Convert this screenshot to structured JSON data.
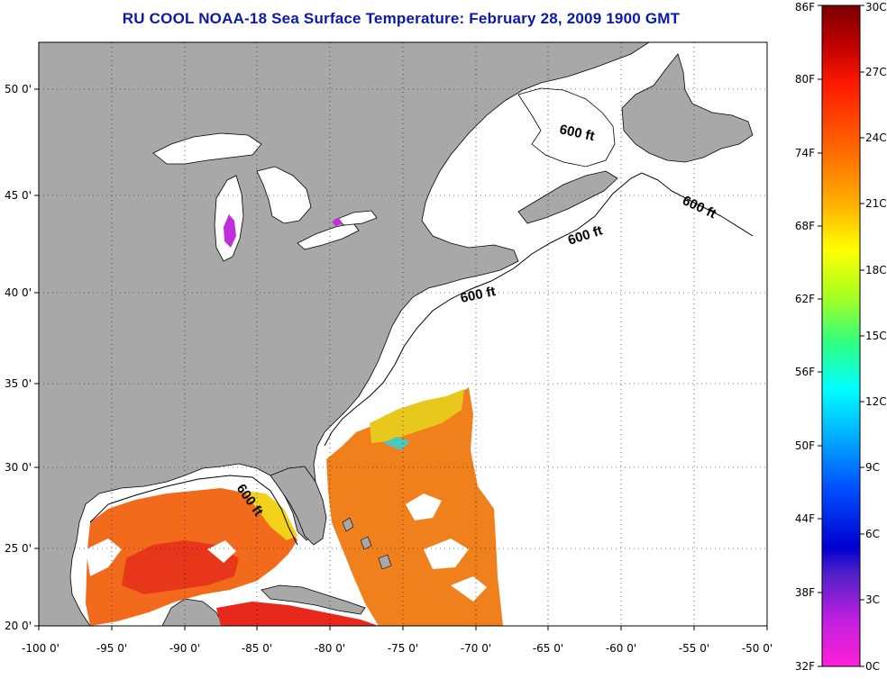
{
  "title": "RU COOL  NOAA-18  Sea Surface Temperature:  February 28, 2009 1900 GMT",
  "colors": {
    "land": "#a8a8a8",
    "water": "#ffffff",
    "title": "#0a1aa8"
  },
  "axes": {
    "x_ticks": [
      "-100 0'",
      "-95 0'",
      "-90 0'",
      "-85 0'",
      "-80 0'",
      "-75 0'",
      "-70 0'",
      "-65 0'",
      "-60 0'",
      "-55 0'",
      "-50 0'"
    ],
    "y_ticks": [
      "50 0'",
      "45 0'",
      "40 0'",
      "35 0'",
      "30 0'",
      "25 0'",
      "20 0'"
    ]
  },
  "contour_labels": [
    "600 ft",
    "600 ft",
    "600 ft",
    "600 ft",
    "600 ft"
  ],
  "colorbar": {
    "fahrenheit": [
      "86F",
      "80F",
      "74F",
      "68F",
      "62F",
      "56F",
      "50F",
      "44F",
      "38F",
      "32F"
    ],
    "celsius": [
      "30C",
      "27C",
      "24C",
      "21C",
      "18C",
      "15C",
      "12C",
      "9C",
      "6C",
      "3C",
      "0C"
    ]
  }
}
